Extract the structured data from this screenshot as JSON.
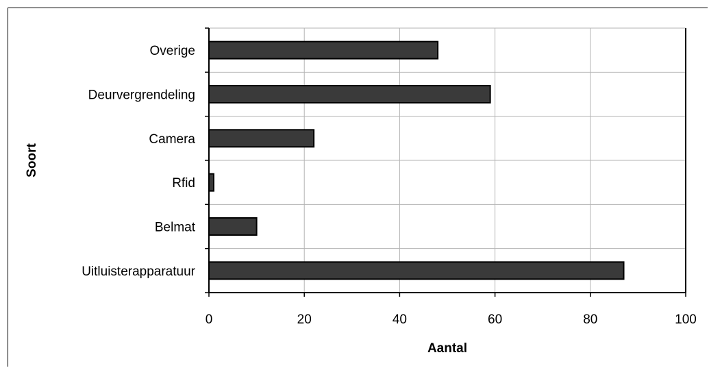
{
  "chart_data": {
    "type": "bar",
    "orientation": "horizontal",
    "title": "",
    "xlabel": "Aantal",
    "ylabel": "Soort",
    "categories": [
      "Overige",
      "Deurvergrendeling",
      "Camera",
      "Rfid",
      "Belmat",
      "Uitluisterapparatuur"
    ],
    "values": [
      48,
      59,
      22,
      1,
      10,
      87
    ],
    "xlim": [
      0,
      100
    ],
    "xticks": [
      "0",
      "20",
      "40",
      "60",
      "80",
      "100"
    ],
    "grid": true,
    "legend": "none",
    "colors": {
      "bar": "#3a3a3a",
      "bar_edge": "#000000",
      "grid": "#b3b3b3"
    }
  }
}
